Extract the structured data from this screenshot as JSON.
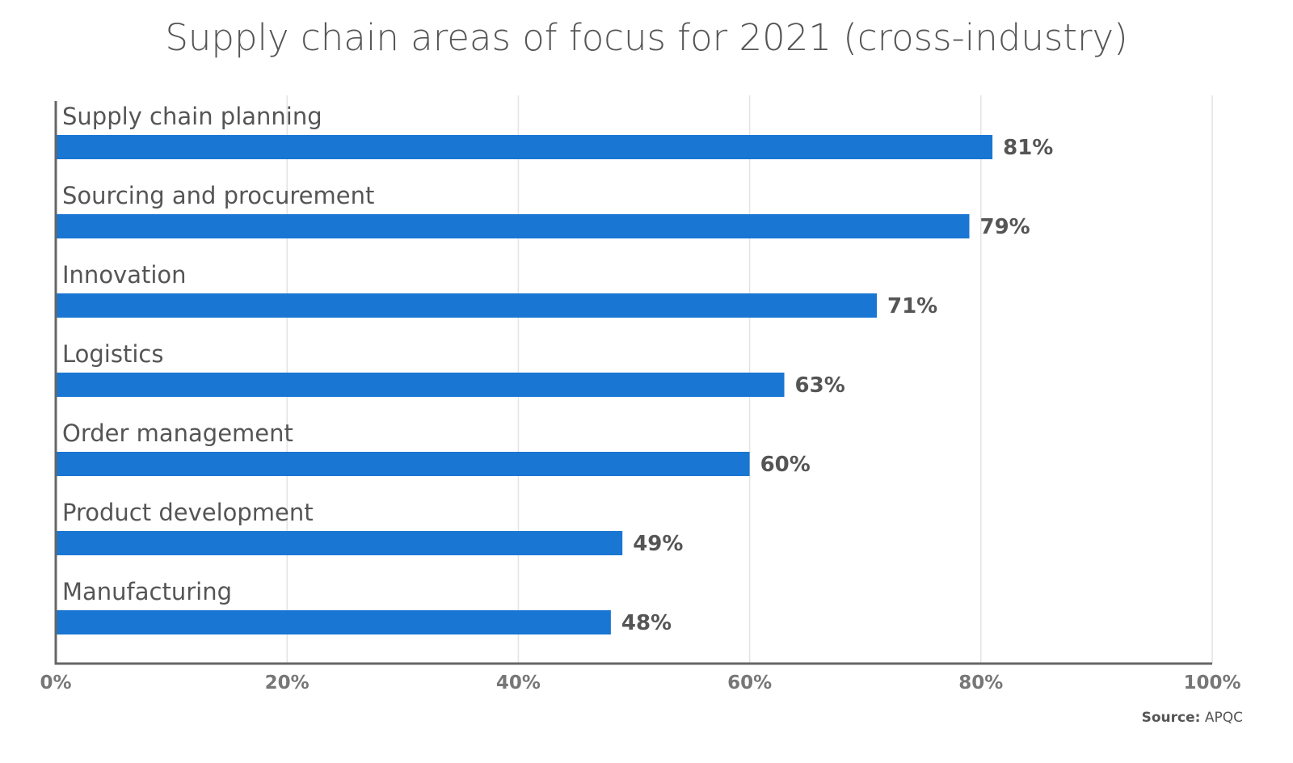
{
  "chart_data": {
    "type": "bar",
    "orientation": "horizontal",
    "title": "Supply chain areas of focus for 2021 (cross-industry)",
    "categories": [
      "Supply chain planning",
      "Sourcing and procurement",
      "Innovation",
      "Logistics",
      "Order management",
      "Product development",
      "Manufacturing"
    ],
    "values": [
      81,
      79,
      71,
      63,
      60,
      49,
      48
    ],
    "value_labels": [
      "81%",
      "79%",
      "71%",
      "63%",
      "60%",
      "49%",
      "48%"
    ],
    "xlim": [
      0,
      100
    ],
    "xticks": [
      0,
      20,
      40,
      60,
      80,
      100
    ],
    "xtick_labels": [
      "0%",
      "20%",
      "40%",
      "60%",
      "80%",
      "100%"
    ],
    "grid": true,
    "legend": "none",
    "bar_color": "#1976d2"
  },
  "source": {
    "label": "Source:",
    "value": "APQC"
  }
}
